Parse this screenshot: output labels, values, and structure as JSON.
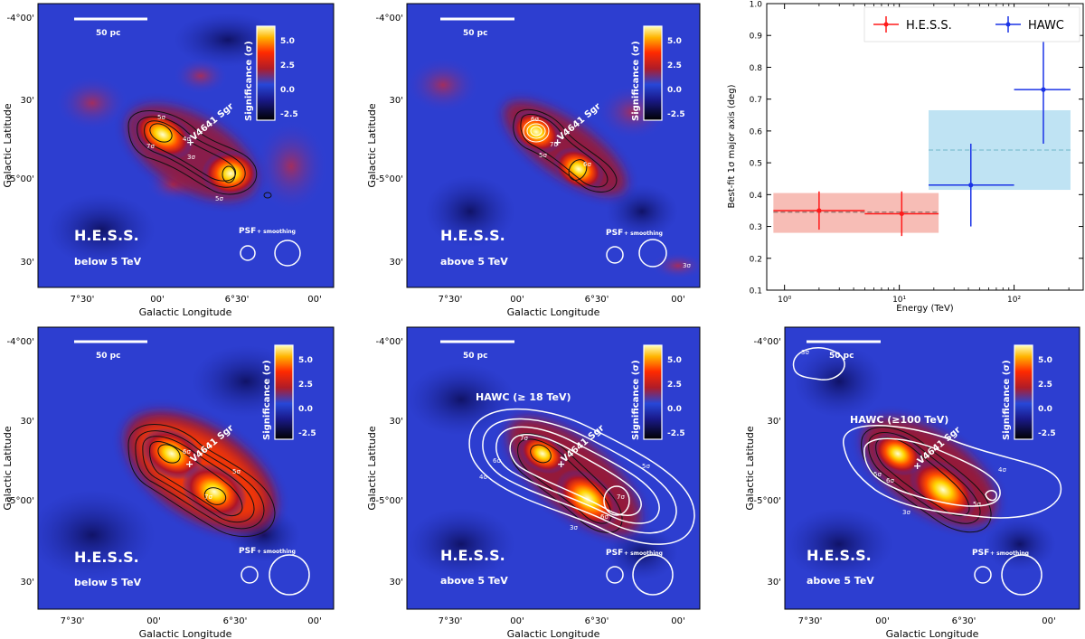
{
  "colors": {
    "frame": "#000000",
    "hess": "#ff1a1a",
    "hawc": "#1a33e6",
    "hess_band": "#f4a79d",
    "hawc_band": "#a9d9ef",
    "hawc_dash": "#6fb7c9"
  },
  "map_panels": [
    {
      "id": "p1",
      "instrument": "H.E.S.S.",
      "band": "below 5 TeV",
      "scale_bar": "50 pc",
      "psf_label": "PSF",
      "smoothing_label": "+ smoothing",
      "source_label": "V4641 Sgr",
      "overlay": "",
      "colorbar": {
        "label": "Significance (σ)",
        "ticks": [
          "5.0",
          "2.5",
          "0.0",
          "-2.5"
        ]
      },
      "contour_labels": [
        "5σ",
        "5σ",
        "4σ",
        "3σ",
        "7σ"
      ],
      "x_ticks": [
        "7°30'",
        "00'",
        "6°30'",
        "00'"
      ],
      "y_ticks": [
        "-4°00'",
        "30'",
        "-5°00'",
        "30'"
      ],
      "xlabel": "Galactic Longitude",
      "ylabel": "Galactic Latitude"
    },
    {
      "id": "p2",
      "instrument": "H.E.S.S.",
      "band": "above 5 TeV",
      "scale_bar": "50 pc",
      "psf_label": "PSF",
      "smoothing_label": "+ smoothing",
      "source_label": "V4641 Sgr",
      "overlay": "",
      "colorbar": {
        "label": "Significance (σ)",
        "ticks": [
          "5.0",
          "2.5",
          "0.0",
          "-2.5"
        ]
      },
      "contour_labels": [
        "6σ",
        "7σ",
        "5σ",
        "6σ",
        "3σ"
      ],
      "x_ticks": [
        "7°30'",
        "00'",
        "6°30'",
        "00'"
      ],
      "y_ticks": [
        "-4°00'",
        "30'",
        "-5°00'",
        "30'"
      ],
      "xlabel": "Galactic Longitude",
      "ylabel": "Galactic Latitude"
    },
    {
      "id": "p4",
      "instrument": "H.E.S.S.",
      "band": "below 5 TeV",
      "scale_bar": "50 pc",
      "psf_label": "PSF",
      "smoothing_label": "+ smoothing",
      "source_label": "V4641 Sgr",
      "overlay": "",
      "colorbar": {
        "label": "Significance (σ)",
        "ticks": [
          "5.0",
          "2.5",
          "0.0",
          "-2.5"
        ]
      },
      "contour_labels": [
        "6σ",
        "5σ",
        "7σ"
      ],
      "x_ticks": [
        "7°30'",
        "00'",
        "6°30'",
        "00'"
      ],
      "y_ticks": [
        "-4°00'",
        "30'",
        "-5°00'",
        "30'"
      ],
      "xlabel": "Galactic Longitude",
      "ylabel": "Galactic Latitude"
    },
    {
      "id": "p5",
      "instrument": "H.E.S.S.",
      "band": "above 5 TeV",
      "scale_bar": "50 pc",
      "psf_label": "PSF",
      "smoothing_label": "+ smoothing",
      "source_label": "V4641 Sgr",
      "overlay": "HAWC (≥ 18 TeV)",
      "colorbar": {
        "label": "Significance (σ)",
        "ticks": [
          "5.0",
          "2.5",
          "0.0",
          "-2.5"
        ]
      },
      "contour_labels": [
        "7σ",
        "6σ",
        "4σ",
        "5σ",
        "7σ",
        "6σ",
        "3σ"
      ],
      "x_ticks": [
        "7°30'",
        "00'",
        "6°30'",
        "00'"
      ],
      "y_ticks": [
        "-4°00'",
        "30'",
        "-5°00'",
        "30'"
      ],
      "xlabel": "Galactic Longitude",
      "ylabel": "Galactic Latitude"
    },
    {
      "id": "p6",
      "instrument": "H.E.S.S.",
      "band": "above 5 TeV",
      "scale_bar": "50 pc",
      "psf_label": "PSF",
      "smoothing_label": "+ smoothing",
      "source_label": "V4641 Sgr",
      "overlay": "HAWC (≥100 TeV)",
      "colorbar": {
        "label": "Significance (σ)",
        "ticks": [
          "5.0",
          "2.5",
          "0.0",
          "-2.5"
        ]
      },
      "contour_labels": [
        "3σ",
        "4σ",
        "5σ",
        "5σ",
        "6σ",
        "3σ"
      ],
      "x_ticks": [
        "7°30'",
        "00'",
        "6°30'",
        "00'"
      ],
      "y_ticks": [
        "-4°00'",
        "30'",
        "-5°00'",
        "30'"
      ],
      "xlabel": "Galactic Longitude",
      "ylabel": "Galactic Latitude"
    }
  ],
  "chart_data": {
    "type": "scatter",
    "xlabel": "Energy (TeV)",
    "ylabel": "Best-fit  1σ major axis (deg)",
    "x_scale": "log",
    "xlim": [
      0.7,
      400
    ],
    "ylim": [
      0.1,
      1.0
    ],
    "x_ticks": [
      {
        "value": 1,
        "label": "10⁰"
      },
      {
        "value": 10,
        "label": "10¹"
      },
      {
        "value": 100,
        "label": "10²"
      }
    ],
    "y_ticks": [
      "0.1",
      "0.2",
      "0.3",
      "0.4",
      "0.5",
      "0.6",
      "0.7",
      "0.8",
      "0.9",
      "1.0"
    ],
    "legend": {
      "placement": "top-right"
    },
    "series": [
      {
        "name": "H.E.S.S.",
        "color": "#ff1a1a",
        "points": [
          {
            "x": 2.0,
            "y": 0.35,
            "xerr": [
              0.8,
              5.0
            ],
            "yerr": [
              0.29,
              0.41
            ]
          },
          {
            "x": 10.5,
            "y": 0.34,
            "xerr": [
              5.0,
              22.0
            ],
            "yerr": [
              0.27,
              0.41
            ]
          }
        ],
        "band": {
          "x": [
            0.8,
            22.0
          ],
          "y": [
            0.28,
            0.405
          ],
          "center": 0.345
        }
      },
      {
        "name": "HAWC",
        "color": "#1a33e6",
        "points": [
          {
            "x": 42.0,
            "y": 0.43,
            "xerr": [
              18.0,
              100.0
            ],
            "yerr": [
              0.3,
              0.56
            ]
          },
          {
            "x": 180.0,
            "y": 0.73,
            "xerr": [
              100.0,
              310.0
            ],
            "yerr": [
              0.56,
              0.9
            ]
          }
        ],
        "band": {
          "x": [
            18.0,
            310.0
          ],
          "y": [
            0.415,
            0.665
          ],
          "center": 0.54
        }
      }
    ]
  }
}
